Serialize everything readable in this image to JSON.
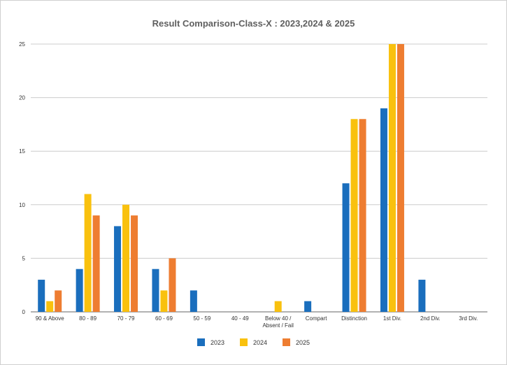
{
  "chart_data": {
    "type": "bar",
    "title": "Result Comparison-Class-X : 2023,2024 & 2025",
    "categories": [
      "90 & Above",
      "80 - 89",
      "70 - 79",
      "60 - 69",
      "50 - 59",
      "40 - 49",
      "Below 40 / Absent / Fail",
      "Compart",
      "Distinction",
      "1st Div.",
      "2nd Div.",
      "3rd Div."
    ],
    "category_lines": [
      [
        "90 & Above"
      ],
      [
        "80 - 89"
      ],
      [
        "70 - 79"
      ],
      [
        "60 - 69"
      ],
      [
        "50 - 59"
      ],
      [
        "40 - 49"
      ],
      [
        "Below 40 /",
        "Absent / Fail"
      ],
      [
        "Compart"
      ],
      [
        "Distinction"
      ],
      [
        "1st Div."
      ],
      [
        "2nd Div."
      ],
      [
        "3rd Div."
      ]
    ],
    "series": [
      {
        "name": "2023",
        "color": "#1a6ebd",
        "values": [
          3,
          4,
          8,
          4,
          2,
          0,
          0,
          1,
          12,
          19,
          3,
          0
        ]
      },
      {
        "name": "2024",
        "color": "#f9c10e",
        "values": [
          1,
          11,
          10,
          2,
          0,
          0,
          1,
          0,
          18,
          25,
          0,
          0
        ]
      },
      {
        "name": "2025",
        "color": "#ee7d31",
        "values": [
          2,
          9,
          9,
          5,
          0,
          0,
          0,
          0,
          18,
          25,
          0,
          0
        ]
      }
    ],
    "yticks": [
      0,
      5,
      10,
      15,
      20,
      25
    ],
    "ylim": [
      0,
      25
    ],
    "grid": true,
    "legend_position": "bottom",
    "xlabel": "",
    "ylabel": ""
  }
}
